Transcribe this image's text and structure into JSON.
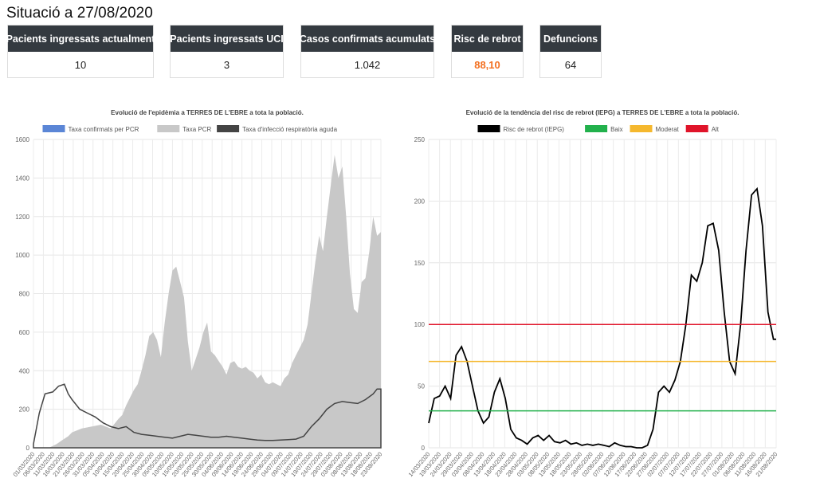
{
  "page": {
    "title": "Situació a 27/08/2020"
  },
  "colors": {
    "accent": "#f37021",
    "card_header": "#343a40"
  },
  "cards": [
    {
      "label": "Pacients ingressats actualment",
      "value": "10"
    },
    {
      "label": "Pacients ingressats UCI",
      "value": "3"
    },
    {
      "label": "Casos confirmats acumulats",
      "value": "1.042"
    },
    {
      "label": "Risc de rebrot",
      "value": "88,10",
      "accent": true
    },
    {
      "label": "Defuncions",
      "value": "64"
    }
  ],
  "chart_data": [
    {
      "type": "area",
      "title": "Evolució de l'epidèmia a TERRES DE L'EBRE a tota la població.",
      "legend_position": "top",
      "grid": true,
      "ylim": [
        0,
        1600
      ],
      "yticks": [
        0,
        200,
        400,
        600,
        800,
        1000,
        1200,
        1400,
        1600
      ],
      "x_tick_labels": [
        "01/03/2020",
        "06/03/2020",
        "11/03/2020",
        "16/03/2020",
        "21/03/2020",
        "26/03/2020",
        "31/03/2020",
        "05/04/2020",
        "10/04/2020",
        "15/04/2020",
        "20/04/2020",
        "25/04/2020",
        "30/04/2020",
        "05/05/2020",
        "10/05/2020",
        "15/05/2020",
        "20/05/2020",
        "25/05/2020",
        "30/05/2020",
        "04/06/2020",
        "09/06/2020",
        "14/06/2020",
        "19/06/2020",
        "24/06/2020",
        "29/06/2020",
        "04/07/2020",
        "09/07/2020",
        "14/07/2020",
        "19/07/2020",
        "24/07/2020",
        "29/07/2020",
        "03/08/2020",
        "08/08/2020",
        "13/08/2020",
        "18/08/2020",
        "23/08/2020"
      ],
      "series": [
        {
          "name": "Taxa confirmats per PCR",
          "color": "#5b86d6",
          "points": [
            [
              0,
              0
            ],
            [
              10,
              2
            ],
            [
              15,
              10
            ],
            [
              25,
              25
            ],
            [
              30,
              35
            ],
            [
              35,
              30
            ],
            [
              40,
              20
            ],
            [
              45,
              25
            ],
            [
              50,
              20
            ],
            [
              55,
              15
            ],
            [
              60,
              10
            ],
            [
              70,
              5
            ],
            [
              80,
              5
            ],
            [
              90,
              8
            ],
            [
              100,
              8
            ],
            [
              110,
              10
            ],
            [
              120,
              15
            ],
            [
              130,
              20
            ],
            [
              140,
              35
            ],
            [
              145,
              60
            ],
            [
              150,
              80
            ],
            [
              155,
              75
            ],
            [
              160,
              55
            ],
            [
              165,
              40
            ],
            [
              170,
              55
            ],
            [
              175,
              65
            ],
            [
              180,
              55
            ]
          ]
        },
        {
          "name": "Taxa PCR",
          "color": "#c8c8c8",
          "points": [
            [
              0,
              0
            ],
            [
              8,
              0
            ],
            [
              12,
              20
            ],
            [
              15,
              40
            ],
            [
              18,
              60
            ],
            [
              20,
              80
            ],
            [
              25,
              100
            ],
            [
              30,
              110
            ],
            [
              35,
              120
            ],
            [
              40,
              100
            ],
            [
              44,
              150
            ],
            [
              46,
              170
            ],
            [
              48,
              220
            ],
            [
              50,
              260
            ],
            [
              52,
              300
            ],
            [
              54,
              330
            ],
            [
              56,
              400
            ],
            [
              58,
              480
            ],
            [
              60,
              580
            ],
            [
              62,
              600
            ],
            [
              64,
              560
            ],
            [
              66,
              470
            ],
            [
              68,
              650
            ],
            [
              70,
              800
            ],
            [
              72,
              920
            ],
            [
              74,
              940
            ],
            [
              76,
              860
            ],
            [
              78,
              780
            ],
            [
              80,
              550
            ],
            [
              82,
              400
            ],
            [
              84,
              460
            ],
            [
              86,
              520
            ],
            [
              88,
              600
            ],
            [
              90,
              650
            ],
            [
              92,
              500
            ],
            [
              94,
              480
            ],
            [
              96,
              450
            ],
            [
              98,
              420
            ],
            [
              100,
              380
            ],
            [
              102,
              440
            ],
            [
              104,
              450
            ],
            [
              106,
              420
            ],
            [
              108,
              410
            ],
            [
              110,
              420
            ],
            [
              112,
              400
            ],
            [
              114,
              390
            ],
            [
              116,
              360
            ],
            [
              118,
              380
            ],
            [
              120,
              340
            ],
            [
              122,
              330
            ],
            [
              124,
              340
            ],
            [
              126,
              330
            ],
            [
              128,
              320
            ],
            [
              130,
              360
            ],
            [
              132,
              380
            ],
            [
              134,
              440
            ],
            [
              136,
              480
            ],
            [
              138,
              520
            ],
            [
              140,
              560
            ],
            [
              142,
              640
            ],
            [
              144,
              800
            ],
            [
              146,
              960
            ],
            [
              148,
              1100
            ],
            [
              150,
              1020
            ],
            [
              152,
              1200
            ],
            [
              154,
              1360
            ],
            [
              156,
              1520
            ],
            [
              158,
              1400
            ],
            [
              160,
              1460
            ],
            [
              162,
              1200
            ],
            [
              164,
              900
            ],
            [
              166,
              720
            ],
            [
              168,
              700
            ],
            [
              170,
              860
            ],
            [
              172,
              880
            ],
            [
              174,
              1020
            ],
            [
              176,
              1200
            ],
            [
              178,
              1100
            ],
            [
              180,
              1120
            ]
          ]
        },
        {
          "name": "Taxa d'infecció respiratòria aguda",
          "color": "#444444",
          "points": [
            [
              0,
              20
            ],
            [
              3,
              180
            ],
            [
              6,
              280
            ],
            [
              10,
              290
            ],
            [
              13,
              320
            ],
            [
              16,
              330
            ],
            [
              18,
              280
            ],
            [
              20,
              250
            ],
            [
              24,
              200
            ],
            [
              28,
              180
            ],
            [
              32,
              160
            ],
            [
              36,
              130
            ],
            [
              40,
              110
            ],
            [
              44,
              100
            ],
            [
              48,
              110
            ],
            [
              52,
              80
            ],
            [
              56,
              70
            ],
            [
              60,
              65
            ],
            [
              64,
              60
            ],
            [
              68,
              55
            ],
            [
              72,
              50
            ],
            [
              76,
              60
            ],
            [
              80,
              70
            ],
            [
              84,
              65
            ],
            [
              88,
              60
            ],
            [
              92,
              55
            ],
            [
              96,
              55
            ],
            [
              100,
              60
            ],
            [
              104,
              55
            ],
            [
              108,
              50
            ],
            [
              112,
              45
            ],
            [
              116,
              40
            ],
            [
              120,
              38
            ],
            [
              124,
              38
            ],
            [
              128,
              40
            ],
            [
              132,
              42
            ],
            [
              136,
              45
            ],
            [
              140,
              60
            ],
            [
              144,
              110
            ],
            [
              148,
              150
            ],
            [
              152,
              200
            ],
            [
              156,
              230
            ],
            [
              160,
              240
            ],
            [
              164,
              235
            ],
            [
              168,
              230
            ],
            [
              172,
              250
            ],
            [
              176,
              280
            ],
            [
              178,
              305
            ],
            [
              180,
              305
            ]
          ]
        }
      ]
    },
    {
      "type": "line",
      "title": "Evolució de la tendència del risc de rebrot (IEPG) a TERRES DE L'EBRE a tota la població.",
      "legend_position": "top",
      "grid": true,
      "ylim": [
        0,
        250
      ],
      "yticks": [
        0,
        50,
        100,
        150,
        200,
        250
      ],
      "x_tick_labels": [
        "14/03/2020",
        "19/03/2020",
        "24/03/2020",
        "29/03/2020",
        "03/04/2020",
        "08/04/2020",
        "13/04/2020",
        "18/04/2020",
        "23/04/2020",
        "28/04/2020",
        "03/05/2020",
        "08/05/2020",
        "13/05/2020",
        "18/05/2020",
        "23/05/2020",
        "28/05/2020",
        "02/06/2020",
        "07/06/2020",
        "12/06/2020",
        "17/06/2020",
        "22/06/2020",
        "27/06/2020",
        "02/07/2020",
        "07/07/2020",
        "12/07/2020",
        "17/07/2020",
        "22/07/2020",
        "27/07/2020",
        "01/08/2020",
        "06/08/2020",
        "11/08/2020",
        "16/08/2020",
        "21/08/2020"
      ],
      "series": [
        {
          "name": "Risc de rebrot (IEPG)",
          "color": "#000000",
          "points": [
            [
              0,
              20
            ],
            [
              2,
              40
            ],
            [
              4,
              42
            ],
            [
              6,
              50
            ],
            [
              8,
              40
            ],
            [
              10,
              75
            ],
            [
              12,
              82
            ],
            [
              14,
              70
            ],
            [
              16,
              50
            ],
            [
              18,
              30
            ],
            [
              20,
              20
            ],
            [
              22,
              25
            ],
            [
              24,
              45
            ],
            [
              26,
              56
            ],
            [
              28,
              40
            ],
            [
              30,
              15
            ],
            [
              32,
              8
            ],
            [
              34,
              6
            ],
            [
              36,
              3
            ],
            [
              38,
              8
            ],
            [
              40,
              10
            ],
            [
              42,
              6
            ],
            [
              44,
              10
            ],
            [
              46,
              5
            ],
            [
              48,
              4
            ],
            [
              50,
              6
            ],
            [
              52,
              3
            ],
            [
              54,
              4
            ],
            [
              56,
              2
            ],
            [
              58,
              3
            ],
            [
              60,
              2
            ],
            [
              62,
              3
            ],
            [
              64,
              2
            ],
            [
              66,
              1
            ],
            [
              68,
              4
            ],
            [
              70,
              2
            ],
            [
              72,
              1
            ],
            [
              74,
              1
            ],
            [
              76,
              0
            ],
            [
              78,
              0
            ],
            [
              80,
              2
            ],
            [
              82,
              15
            ],
            [
              84,
              45
            ],
            [
              86,
              50
            ],
            [
              88,
              45
            ],
            [
              90,
              55
            ],
            [
              92,
              70
            ],
            [
              94,
              100
            ],
            [
              96,
              140
            ],
            [
              98,
              135
            ],
            [
              100,
              150
            ],
            [
              102,
              180
            ],
            [
              104,
              182
            ],
            [
              106,
              160
            ],
            [
              108,
              110
            ],
            [
              110,
              70
            ],
            [
              112,
              60
            ],
            [
              114,
              100
            ],
            [
              116,
              160
            ],
            [
              118,
              205
            ],
            [
              120,
              210
            ],
            [
              122,
              180
            ],
            [
              124,
              110
            ],
            [
              126,
              88
            ],
            [
              127,
              88
            ]
          ]
        },
        {
          "name": "Baix",
          "color": "#22b14c",
          "points": [
            [
              0,
              30
            ],
            [
              127,
              30
            ]
          ]
        },
        {
          "name": "Moderat",
          "color": "#f5b82e",
          "points": [
            [
              0,
              70
            ],
            [
              127,
              70
            ]
          ]
        },
        {
          "name": "Alt",
          "color": "#e0142a",
          "points": [
            [
              0,
              100
            ],
            [
              127,
              100
            ]
          ]
        }
      ]
    }
  ]
}
